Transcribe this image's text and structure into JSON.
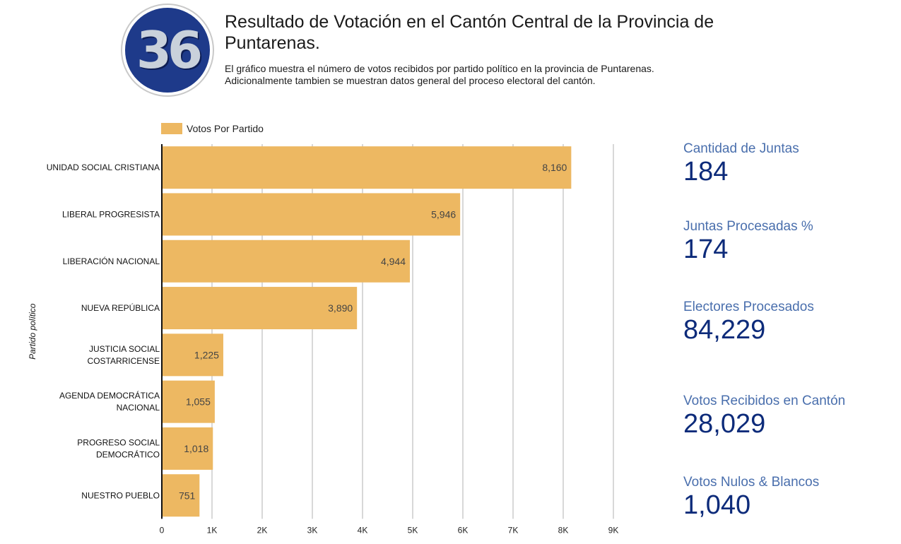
{
  "logo": {
    "text": "36",
    "colors": {
      "circle": "#1e3a8a",
      "digits": "#c9d1db"
    }
  },
  "header": {
    "title": "Resultado de Votación en el Cantón Central de la Provincia de Puntarenas.",
    "subtitle_line1": "El gráfico muestra el número de votos recibidos por partido político en la provincia de Puntarenas.",
    "subtitle_line2": "Adicionalmente tambien se muestran datos general del proceso electoral del cantón."
  },
  "chart_data": {
    "type": "bar",
    "orientation": "horizontal",
    "categories": [
      [
        "UNIDAD SOCIAL CRISTIANA"
      ],
      [
        "LIBERAL PROGRESISTA"
      ],
      [
        "LIBERACIÓN NACIONAL"
      ],
      [
        "NUEVA REPÚBLICA"
      ],
      [
        "JUSTICIA SOCIAL",
        "COSTARRICENSE"
      ],
      [
        "AGENDA DEMOCRÁTICA",
        "NACIONAL"
      ],
      [
        "PROGRESO SOCIAL",
        "DEMOCRÁTICO"
      ],
      [
        "NUESTRO PUEBLO"
      ]
    ],
    "series": [
      {
        "name": "Votos Por Partido",
        "values": [
          8160,
          5946,
          4944,
          3890,
          1225,
          1055,
          1018,
          751
        ],
        "color": "#edb862"
      }
    ],
    "data_labels": [
      "8,160",
      "5,946",
      "4,944",
      "3,890",
      "1,225",
      "1,055",
      "1,018",
      "751"
    ],
    "ylabel": "Partido político",
    "xlabel": "",
    "xlim": [
      0,
      9000
    ],
    "x_ticks": [
      0,
      1000,
      2000,
      3000,
      4000,
      5000,
      6000,
      7000,
      8000,
      9000
    ],
    "x_tick_labels": [
      "0",
      "1K",
      "2K",
      "3K",
      "4K",
      "5K",
      "6K",
      "7K",
      "8K",
      "9K"
    ],
    "grid": true,
    "legend": "top-left"
  },
  "stats": [
    {
      "label": "Cantidad de Juntas",
      "value": "184"
    },
    {
      "label": "Juntas Procesadas %",
      "value": "174"
    },
    {
      "label": "Electores Procesados",
      "value": "84,229"
    },
    {
      "label": "Votos Recibidos en Cantón",
      "value": "28,029"
    },
    {
      "label": "Votos Nulos & Blancos",
      "value": "1,040"
    }
  ]
}
